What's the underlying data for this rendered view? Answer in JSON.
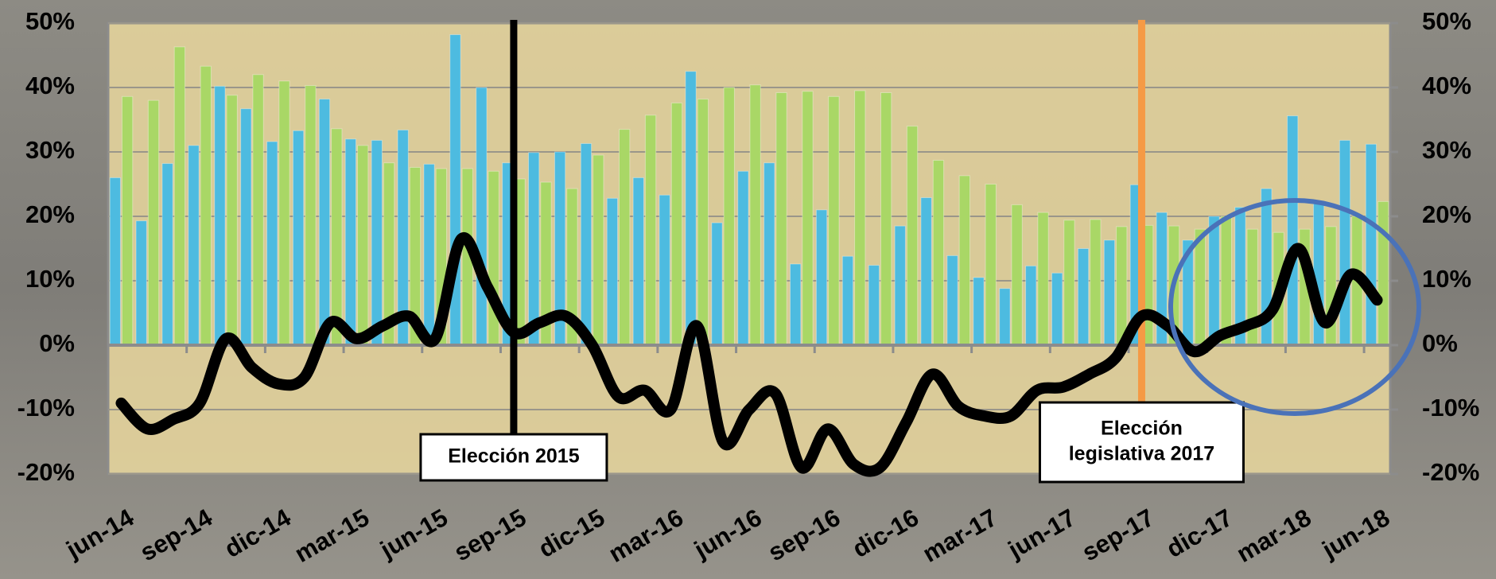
{
  "chart_data": {
    "type": "bar",
    "categories": [
      "jun-14",
      null,
      null,
      "sep-14",
      null,
      null,
      "dic-14",
      null,
      null,
      "mar-15",
      null,
      null,
      "jun-15",
      null,
      null,
      "sep-15",
      null,
      null,
      "dic-15",
      null,
      null,
      "mar-16",
      null,
      null,
      "jun-16",
      null,
      null,
      "sep-16",
      null,
      null,
      "dic-16",
      null,
      null,
      "mar-17",
      null,
      null,
      "jun-17",
      null,
      null,
      "sep-17",
      null,
      null,
      "dic-17",
      null,
      null,
      "mar-18",
      null,
      null,
      "jun-18"
    ],
    "series": [
      {
        "type": "bar",
        "color": "#4dbbe0",
        "values": [
          26,
          19.3,
          28.2,
          31,
          40.2,
          36.7,
          31.6,
          33.3,
          38.2,
          32,
          31.8,
          33.4,
          28.1,
          48.2,
          40,
          28.3,
          29.9,
          30,
          31.3,
          22.8,
          26,
          23.3,
          42.5,
          19,
          27,
          28.3,
          12.6,
          21,
          13.8,
          12.4,
          18.5,
          22.9,
          13.9,
          10.5,
          8.8,
          12.3,
          11.2,
          15,
          16.3,
          24.9,
          20.6,
          16.3,
          20,
          21.4,
          24.3,
          35.6,
          22.2,
          31.8,
          31.2
        ]
      },
      {
        "type": "bar",
        "color": "#a9d766",
        "values": [
          38.6,
          38,
          46.3,
          43.3,
          38.8,
          42,
          41,
          40.3,
          33.6,
          31,
          28.3,
          27.6,
          27.4,
          27.4,
          27,
          25.8,
          25.3,
          24.3,
          29.5,
          33.5,
          35.7,
          37.6,
          38.2,
          40,
          40.4,
          39.2,
          39.4,
          38.6,
          39.5,
          39.2,
          34,
          28.7,
          26.3,
          25,
          21.8,
          20.6,
          19.4,
          19.5,
          18.4,
          18.6,
          18.5,
          18,
          20,
          18,
          17.5,
          18,
          18.4,
          20,
          22.3
        ]
      },
      {
        "type": "line",
        "axis": "y2",
        "color": "#000000",
        "values": [
          -9,
          -13,
          -11.5,
          -9,
          1,
          -3.5,
          -6,
          -5,
          3.5,
          1,
          3,
          4.5,
          1,
          16.5,
          9,
          2,
          3.5,
          4.5,
          0,
          -8,
          -7,
          -10,
          3,
          -15,
          -10,
          -7.5,
          -19,
          -13,
          -18.5,
          -19,
          -12,
          -4.5,
          -9.5,
          -11,
          -11,
          -7,
          -6.5,
          -4.5,
          -2,
          4.5,
          3,
          -1,
          1.5,
          3,
          5.5,
          15,
          3.5,
          11,
          7
        ]
      }
    ],
    "ylim": [
      -20,
      50
    ],
    "yticks": [
      {
        "value": -20,
        "label": "-20%"
      },
      {
        "value": -10,
        "label": "-10%"
      },
      {
        "value": 0,
        "label": "0%"
      },
      {
        "value": 10,
        "label": "10%"
      },
      {
        "value": 20,
        "label": "20%"
      },
      {
        "value": 30,
        "label": "30%"
      },
      {
        "value": 40,
        "label": "40%"
      },
      {
        "value": 50,
        "label": "50%"
      }
    ],
    "y2lim": [
      -20,
      50
    ],
    "y2ticks": [
      {
        "value": -20,
        "label": "-20%"
      },
      {
        "value": -10,
        "label": "-10%"
      },
      {
        "value": 0,
        "label": "0%"
      },
      {
        "value": 10,
        "label": "10%"
      },
      {
        "value": 20,
        "label": "20%"
      },
      {
        "value": 30,
        "label": "30%"
      },
      {
        "value": 40,
        "label": "40%"
      },
      {
        "value": 50,
        "label": "50%"
      }
    ],
    "grid": true,
    "annotations": [
      {
        "text": [
          "Elección 2015"
        ],
        "at": "sep-15",
        "color": "#000000"
      },
      {
        "text": [
          "Elección",
          "legislativa 2017"
        ],
        "at": "sep-17",
        "color": "#f59a45"
      }
    ]
  }
}
